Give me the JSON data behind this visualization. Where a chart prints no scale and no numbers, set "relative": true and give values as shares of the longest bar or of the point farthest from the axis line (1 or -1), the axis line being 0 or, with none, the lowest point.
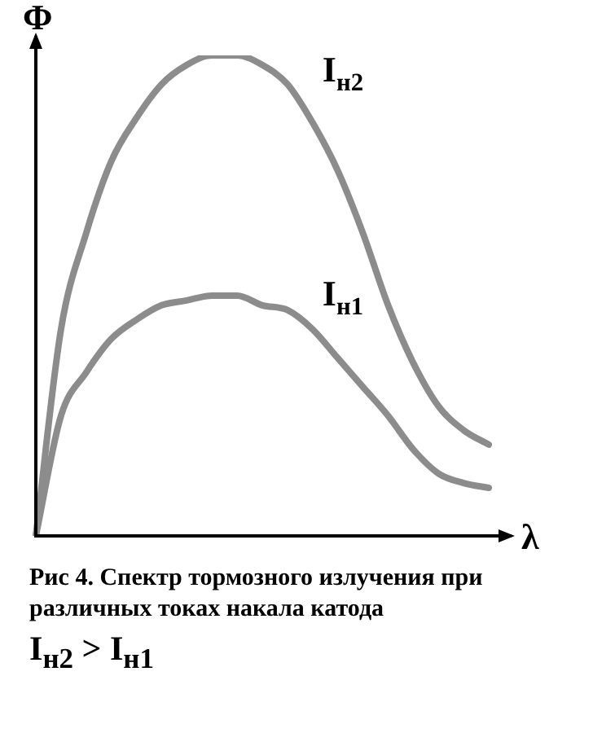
{
  "chart_data": {
    "type": "line",
    "relative": true,
    "xlabel": "λ",
    "ylabel": "Φ",
    "categories": [
      null,
      null,
      null,
      null,
      null,
      null,
      null,
      null,
      null,
      null,
      null,
      null,
      null,
      null,
      null,
      null,
      null,
      null,
      null
    ],
    "series": [
      {
        "name": "I$_{н2}$",
        "color": "#8c8c8c",
        "values": [
          0,
          0.43,
          0.63,
          0.78,
          0.87,
          0.94,
          0.98,
          1,
          1,
          0.98,
          0.94,
          0.86,
          0.76,
          0.63,
          0.48,
          0.36,
          0.27,
          0.22,
          0.19
        ]
      },
      {
        "name": "I$_{н1}$",
        "color": "#8c8c8c",
        "values": [
          0,
          0.25,
          0.34,
          0.41,
          0.45,
          0.48,
          0.49,
          0.5,
          0.5,
          0.48,
          0.47,
          0.43,
          0.37,
          0.31,
          0.25,
          0.18,
          0.13,
          0.11,
          0.1
        ]
      }
    ],
    "legend": false,
    "marker": "none",
    "line_style": "solid",
    "annotations": [
      "Рис 4. Спектр тормозного излучения при различных токах накала катода",
      "I$_{н2}$ > I$_{н1}$"
    ]
  }
}
